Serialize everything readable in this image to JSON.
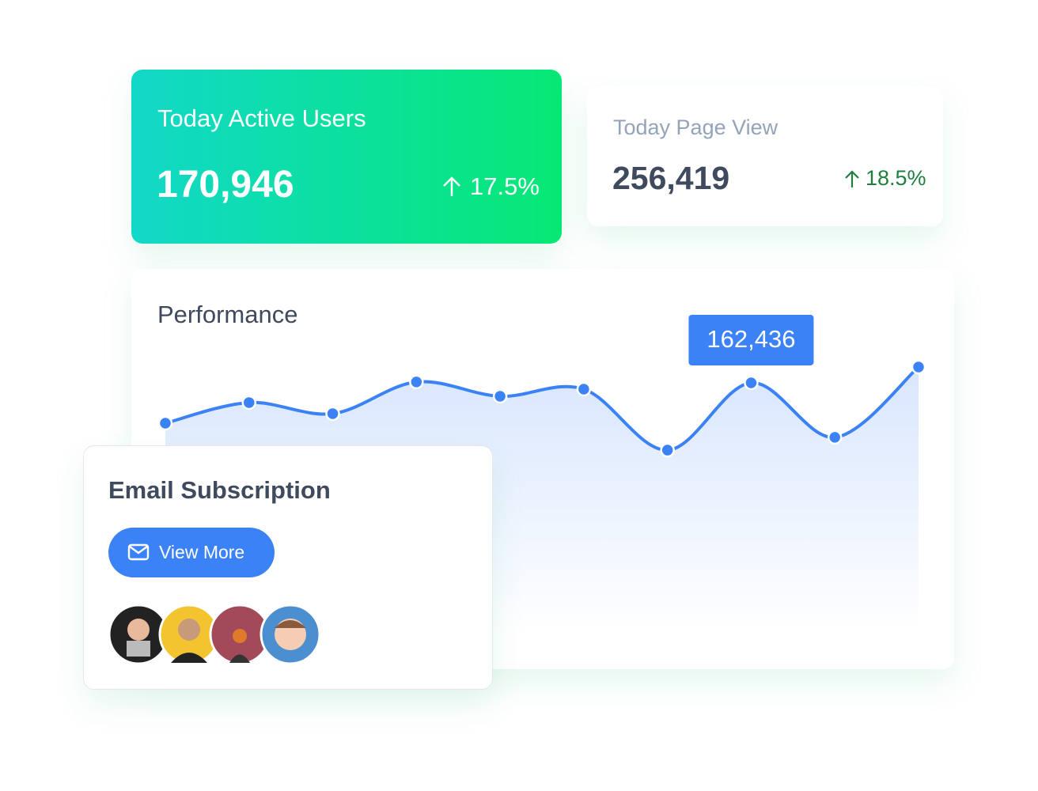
{
  "cards": [
    {
      "title": "Today Active Users",
      "value": "170,946",
      "change": "17.5%"
    },
    {
      "title": "Today Page View",
      "value": "256,419",
      "change": "18.5%"
    }
  ],
  "chart_data": {
    "type": "line",
    "title": "Performance",
    "categories": [
      null,
      null,
      null,
      null,
      null,
      null,
      null,
      null,
      null,
      null
    ],
    "values": [
      136200,
      149600,
      142400,
      163000,
      153700,
      158300,
      118700,
      162436,
      127000,
      172700
    ],
    "value_labels": [
      null,
      null,
      null,
      null,
      null,
      null,
      null,
      "162,436",
      null,
      null
    ],
    "color": "#3b82f6"
  },
  "email_card": {
    "title": "Email Subscription",
    "button": "View More"
  }
}
